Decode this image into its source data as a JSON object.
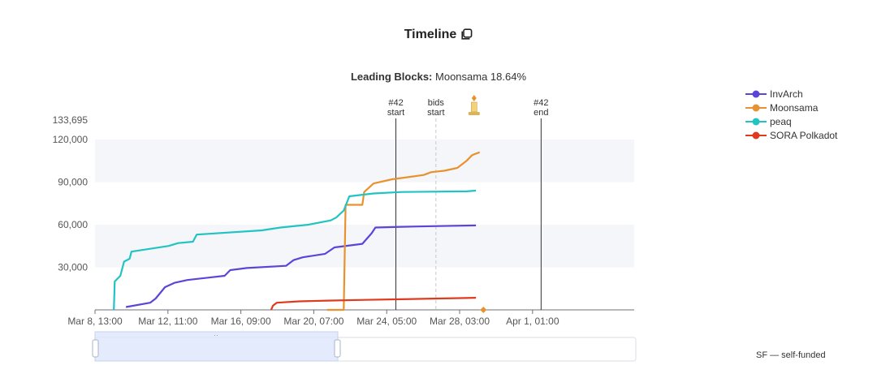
{
  "header": {
    "title": "Timeline",
    "copy_icon": "copy-icon"
  },
  "subtitle": {
    "label": "Leading Blocks:",
    "value": "Moonsama 18.64%"
  },
  "footnote": "SF — self-funded",
  "chart_data": {
    "type": "line",
    "title": "Timeline",
    "y_max_label": "133,695",
    "yticks": [
      "30,000",
      "60,000",
      "90,000",
      "120,000"
    ],
    "xticks": [
      "Mar 8, 13:00",
      "Mar 12, 11:00",
      "Mar 16, 09:00",
      "Mar 20, 07:00",
      "Mar 24, 05:00",
      "Mar 28, 03:00",
      "Apr 1, 01:00"
    ],
    "xrange_days": [
      8.54,
      37.5
    ],
    "ylim": [
      0,
      133695
    ],
    "markers": [
      {
        "label1": "#42",
        "label2": "start",
        "day": 24.7,
        "style": "solid"
      },
      {
        "label1": "bids",
        "label2": "start",
        "day": 26.85,
        "style": "dashed"
      },
      {
        "label1": "#42",
        "label2": "end",
        "day": 32.5,
        "style": "solid"
      }
    ],
    "winner_icon": "candle-icon",
    "winner_day": 28.9,
    "series": [
      {
        "name": "InvArch",
        "color": "#5b45d8",
        "points": [
          [
            10.2,
            2000
          ],
          [
            11.5,
            5000
          ],
          [
            11.8,
            8000
          ],
          [
            12.3,
            16000
          ],
          [
            12.8,
            19000
          ],
          [
            13.5,
            21000
          ],
          [
            15.5,
            24000
          ],
          [
            15.8,
            28000
          ],
          [
            16.7,
            29500
          ],
          [
            18.8,
            31000
          ],
          [
            19.2,
            35000
          ],
          [
            19.7,
            37000
          ],
          [
            20.9,
            39500
          ],
          [
            21.4,
            44000
          ],
          [
            22.9,
            46500
          ],
          [
            23.4,
            54000
          ],
          [
            23.6,
            58000
          ],
          [
            25,
            58500
          ],
          [
            27,
            59000
          ],
          [
            29,
            59500
          ]
        ]
      },
      {
        "name": "Moonsama",
        "color": "#e8922f",
        "points": [
          [
            21,
            0
          ],
          [
            21.5,
            0
          ],
          [
            21.9,
            0
          ],
          [
            22,
            74000
          ],
          [
            22.9,
            74000
          ],
          [
            23,
            83000
          ],
          [
            23.5,
            89000
          ],
          [
            24.5,
            92000
          ],
          [
            26.2,
            95000
          ],
          [
            26.6,
            97000
          ],
          [
            27.3,
            98000
          ],
          [
            28,
            100000
          ],
          [
            28.5,
            105000
          ],
          [
            28.8,
            109000
          ],
          [
            29.2,
            111000
          ]
        ]
      },
      {
        "name": "peaq",
        "color": "#22c3c3",
        "points": [
          [
            9.55,
            0
          ],
          [
            9.6,
            20000
          ],
          [
            9.9,
            24000
          ],
          [
            10.1,
            34000
          ],
          [
            10.4,
            36000
          ],
          [
            10.5,
            41000
          ],
          [
            11.5,
            43000
          ],
          [
            12.5,
            45000
          ],
          [
            13,
            47000
          ],
          [
            13.8,
            48000
          ],
          [
            14,
            53000
          ],
          [
            17.5,
            56000
          ],
          [
            18.5,
            58000
          ],
          [
            20,
            60000
          ],
          [
            21.2,
            63000
          ],
          [
            21.5,
            65000
          ],
          [
            21.9,
            70000
          ],
          [
            22.2,
            80000
          ],
          [
            23.5,
            82000
          ],
          [
            25,
            83000
          ],
          [
            28.5,
            83500
          ],
          [
            29,
            84000
          ]
        ]
      },
      {
        "name": "SORA Polkadot",
        "color": "#e03a1e",
        "points": [
          [
            18,
            0
          ],
          [
            18.1,
            3000
          ],
          [
            18.3,
            5000
          ],
          [
            19.5,
            6000
          ],
          [
            21,
            6500
          ],
          [
            23,
            7000
          ],
          [
            25,
            7500
          ],
          [
            27,
            8000
          ],
          [
            29,
            8500
          ]
        ]
      }
    ],
    "legend_position": "top-right",
    "grid": true
  }
}
